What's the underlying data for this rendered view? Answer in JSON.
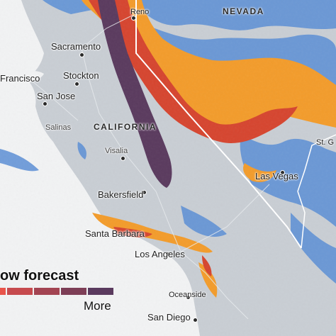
{
  "map": {
    "states": {
      "california": "CALIFORNIA",
      "nevada": "NEVADA"
    },
    "cities": [
      {
        "key": "reno",
        "label": "Reno"
      },
      {
        "key": "sacramento",
        "label": "Sacramento"
      },
      {
        "key": "san-francisco",
        "label": "Francisco"
      },
      {
        "key": "stockton",
        "label": "Stockton"
      },
      {
        "key": "san-jose",
        "label": "San Jose"
      },
      {
        "key": "salinas",
        "label": "Salinas"
      },
      {
        "key": "visalia",
        "label": "Visalia"
      },
      {
        "key": "bakersfield",
        "label": "Bakersfield"
      },
      {
        "key": "las-vegas",
        "label": "Las Vegas"
      },
      {
        "key": "santa-barbara",
        "label": "Santa Barbara"
      },
      {
        "key": "los-angeles",
        "label": "Los Angeles"
      },
      {
        "key": "oceanside",
        "label": "Oceanside"
      },
      {
        "key": "san-diego",
        "label": "San Diego"
      },
      {
        "key": "st-george",
        "label": "St. G"
      }
    ]
  },
  "legend": {
    "title": "ow forecast",
    "more_label": "More",
    "colors": [
      "#e8544a",
      "#c64a4e",
      "#a34452",
      "#7d3e56",
      "#5a3a5e"
    ]
  },
  "colors": {
    "land": "#c9ced4",
    "ocean": "#f2f3f4",
    "snow_light": "#5b8fd6",
    "snow_mid": "#f39c2b",
    "snow_heavy": "#d6452f",
    "snow_max": "#5a3a5e"
  }
}
